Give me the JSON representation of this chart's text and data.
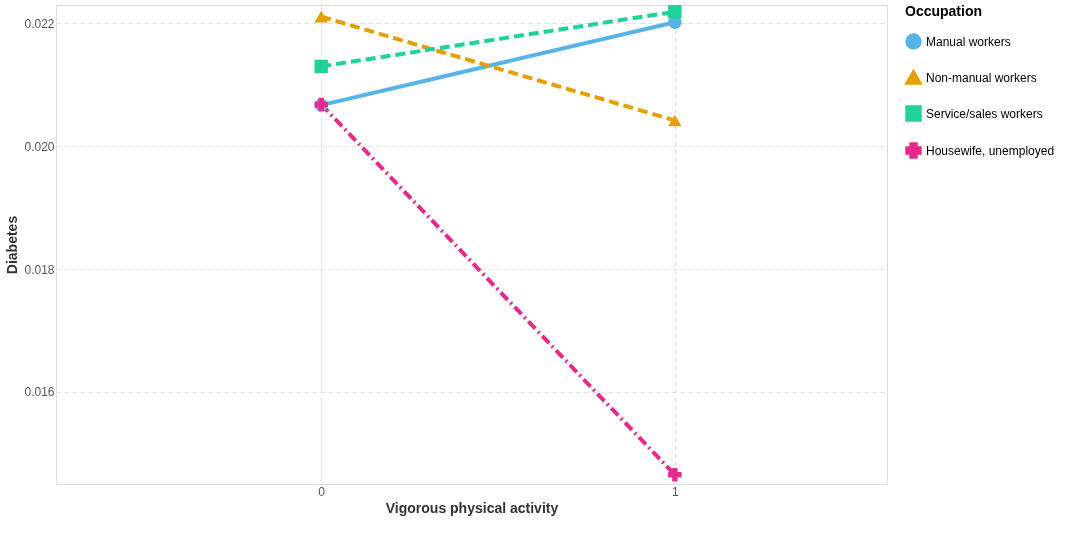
{
  "chart_data": {
    "type": "line",
    "xlabel": "Vigorous physical activity",
    "ylabel": "Diabetes",
    "legend_title": "Occupation",
    "x": [
      0,
      1
    ],
    "xlim": [
      -0.75,
      1.6
    ],
    "xticks": [
      0,
      1
    ],
    "ylim": [
      0.0145,
      0.0223
    ],
    "yticks": [
      {
        "value": 0.016,
        "label": "0.016"
      },
      {
        "value": 0.018,
        "label": "0.018"
      },
      {
        "value": 0.02,
        "label": "0.020"
      },
      {
        "value": 0.022,
        "label": "0.022"
      }
    ],
    "grid": true,
    "legend": "right",
    "series": [
      {
        "name": "Manual workers",
        "color": "#56b4e9",
        "values": [
          0.02067,
          0.02202
        ],
        "marker": "circle",
        "line_style": "solid"
      },
      {
        "name": "Non-manual workers",
        "color": "#e69f00",
        "values": [
          0.02211,
          0.02042
        ],
        "marker": "triangle",
        "line_style": "dashed"
      },
      {
        "name": "Service/sales workers",
        "color": "#1fd19a",
        "values": [
          0.0213,
          0.02219
        ],
        "marker": "square",
        "line_style": "dashed"
      },
      {
        "name": "Housewife, unemployed",
        "color": "#e7298a",
        "values": [
          0.02068,
          0.01465
        ],
        "marker": "cross",
        "line_style": "dotted"
      }
    ]
  }
}
